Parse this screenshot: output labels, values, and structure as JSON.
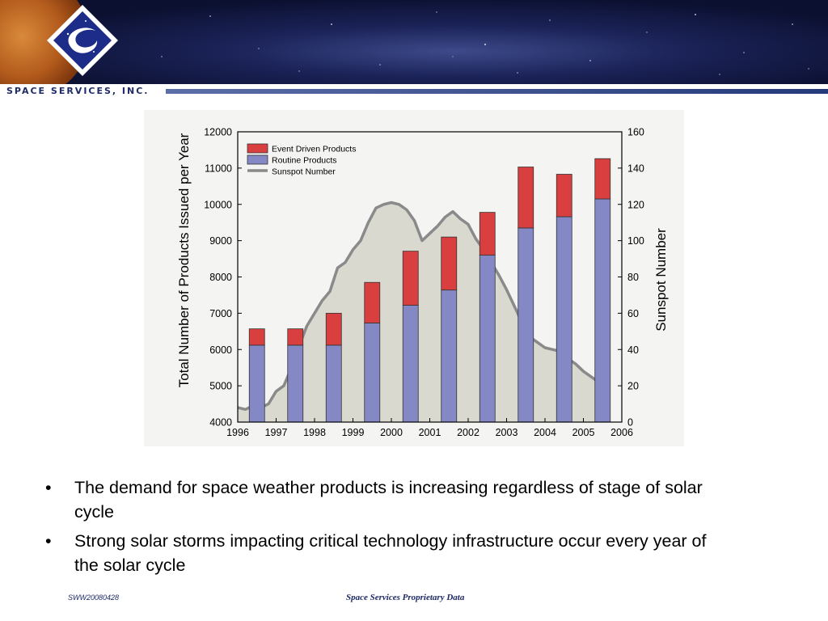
{
  "header": {
    "brand_name": "SPACE SERVICES, INC."
  },
  "chart_data": {
    "type": "bar",
    "categories": [
      "1996",
      "1997",
      "1998",
      "1999",
      "2000",
      "2001",
      "2002",
      "2003",
      "2004",
      "2005"
    ],
    "x_ticks": [
      "1996",
      "1997",
      "1998",
      "1999",
      "2000",
      "2001",
      "2002",
      "2003",
      "2004",
      "2005",
      "2006"
    ],
    "series": [
      {
        "name": "Routine Products",
        "color": "#8488c4",
        "values": [
          6120,
          6120,
          6120,
          6730,
          7220,
          7640,
          8600,
          9350,
          9660,
          10150
        ]
      },
      {
        "name": "Event Driven Products",
        "color": "#d93f3f",
        "values": [
          450,
          450,
          880,
          1120,
          1490,
          1460,
          1180,
          1680,
          1170,
          1110
        ]
      }
    ],
    "sunspot": {
      "name": "Sunspot Number",
      "color": "#8a8a8a",
      "fill": "#d9d9d0",
      "x": [
        1996.0,
        1996.2,
        1996.4,
        1996.6,
        1996.8,
        1997.0,
        1997.2,
        1997.4,
        1997.6,
        1997.8,
        1998.0,
        1998.2,
        1998.4,
        1998.6,
        1998.8,
        1999.0,
        1999.2,
        1999.4,
        1999.6,
        1999.8,
        2000.0,
        2000.2,
        2000.4,
        2000.6,
        2000.8,
        2001.0,
        2001.2,
        2001.4,
        2001.6,
        2001.8,
        2002.0,
        2002.2,
        2002.4,
        2002.6,
        2002.8,
        2003.0,
        2003.2,
        2003.4,
        2003.6,
        2003.8,
        2004.0,
        2004.2,
        2004.4,
        2004.6,
        2004.8,
        2005.0,
        2005.2,
        2005.4,
        2005.6
      ],
      "y": [
        8,
        7,
        9,
        8,
        10,
        17,
        20,
        30,
        42,
        53,
        60,
        67,
        72,
        85,
        88,
        95,
        100,
        110,
        118,
        120,
        121,
        120,
        117,
        111,
        100,
        104,
        108,
        113,
        116,
        112,
        109,
        101,
        95,
        88,
        81,
        73,
        64,
        55,
        47,
        44,
        41,
        40,
        39,
        35,
        32,
        28,
        25,
        22,
        24
      ]
    },
    "xlim": [
      1996,
      2006
    ],
    "ylim": [
      4000,
      12000
    ],
    "y_ticks": [
      4000,
      5000,
      6000,
      7000,
      8000,
      9000,
      10000,
      11000,
      12000
    ],
    "y2lim": [
      0,
      160
    ],
    "y2_ticks": [
      0,
      20,
      40,
      60,
      80,
      100,
      120,
      140,
      160
    ],
    "ylabel": "Total Number of Products Issued per Year",
    "y2label": "Sunspot Number",
    "xlabel": "",
    "grid": false,
    "legend_position": "top-left"
  },
  "bullets": [
    "The demand for space weather products is increasing regardless of stage of solar cycle",
    "Strong solar storms impacting critical technology infrastructure occur every year of the solar cycle"
  ],
  "bullet_symbol": "•",
  "footer": {
    "doc_id": "SWW20080428",
    "center_text": "Space Services Proprietary Data"
  }
}
